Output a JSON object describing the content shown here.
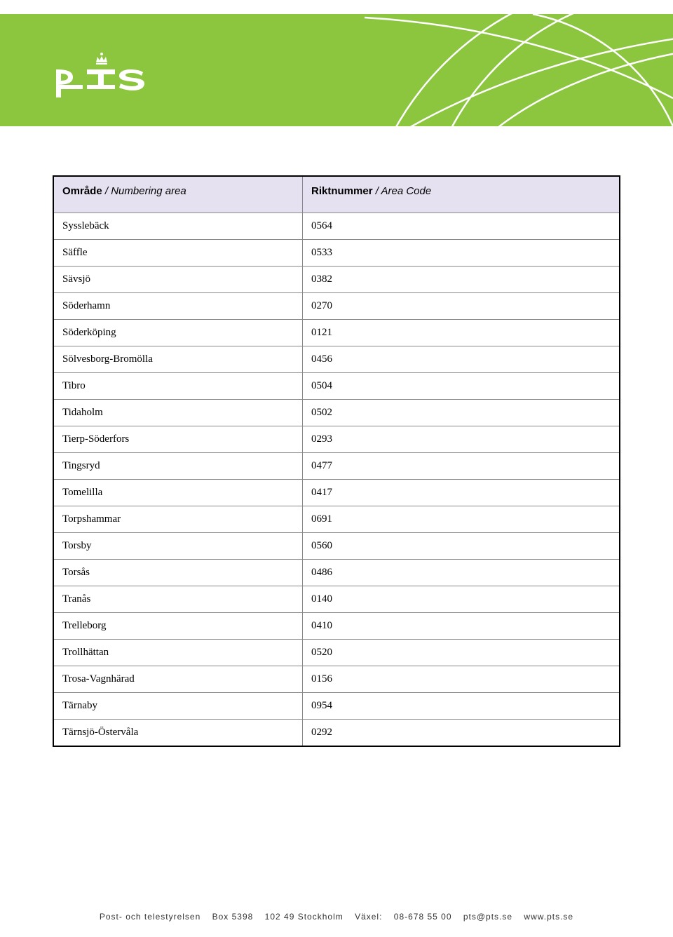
{
  "header": {
    "background_color": "#8cc63f",
    "arc_stroke_color": "#ffffff",
    "logo_color": "#ffffff"
  },
  "table": {
    "header_bg_color": "#e6e1f0",
    "columns": [
      {
        "label_bold": "Område",
        "label_sep": " / ",
        "label_italic": "Numbering area"
      },
      {
        "label_bold": "Riktnummer",
        "label_sep": " / ",
        "label_italic": "Area Code"
      }
    ],
    "rows": [
      {
        "area": "Sysslebäck",
        "code": "0564"
      },
      {
        "area": "Säffle",
        "code": "0533"
      },
      {
        "area": "Sävsjö",
        "code": "0382"
      },
      {
        "area": "Söderhamn",
        "code": "0270"
      },
      {
        "area": "Söderköping",
        "code": "0121"
      },
      {
        "area": "Sölvesborg-Bromölla",
        "code": "0456"
      },
      {
        "area": "Tibro",
        "code": "0504"
      },
      {
        "area": "Tidaholm",
        "code": "0502"
      },
      {
        "area": "Tierp-Söderfors",
        "code": "0293"
      },
      {
        "area": "Tingsryd",
        "code": "0477"
      },
      {
        "area": "Tomelilla",
        "code": "0417"
      },
      {
        "area": "Torpshammar",
        "code": "0691"
      },
      {
        "area": "Torsby",
        "code": "0560"
      },
      {
        "area": "Torsås",
        "code": "0486"
      },
      {
        "area": "Tranås",
        "code": "0140"
      },
      {
        "area": "Trelleborg",
        "code": "0410"
      },
      {
        "area": "Trollhättan",
        "code": "0520"
      },
      {
        "area": "Trosa-Vagnhärad",
        "code": "0156"
      },
      {
        "area": "Tärnaby",
        "code": "0954"
      },
      {
        "area": "Tärnsjö-Östervåla",
        "code": "0292"
      }
    ]
  },
  "footer": {
    "org": "Post- och telestyrelsen",
    "box": "Box 5398",
    "address": "102 49 Stockholm",
    "phone_label": "Växel:",
    "phone": "08-678 55 00",
    "email": "pts@pts.se",
    "web": "www.pts.se"
  }
}
